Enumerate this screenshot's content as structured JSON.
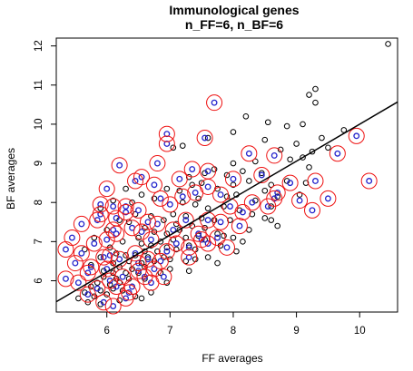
{
  "chart_data": {
    "type": "scatter",
    "title": "Immunological genes",
    "subtitle": "n_FF=6, n_BF=6",
    "xlabel": "FF averages",
    "ylabel": "BF averages",
    "xlim": [
      5.2,
      10.6
    ],
    "ylim": [
      5.2,
      12.2
    ],
    "x_ticks": [
      6,
      7,
      8,
      9,
      10
    ],
    "y_ticks": [
      6,
      7,
      8,
      9,
      10,
      11,
      12
    ],
    "grid": false,
    "regression_line": {
      "intercept": 0.55,
      "slope": 0.945
    },
    "colors": {
      "points": "#000000",
      "highlight_inner": "#2222cc",
      "highlight_ring": "#ee1111",
      "line": "#000000"
    },
    "series": [
      {
        "role": "all-genes",
        "points": [
          [
            10.45,
            12.05
          ],
          [
            9.3,
            10.9
          ],
          [
            9.2,
            10.75
          ],
          [
            9.3,
            10.55
          ],
          [
            8.2,
            10.2
          ],
          [
            8.55,
            10.05
          ],
          [
            9.1,
            10.0
          ],
          [
            8.85,
            9.95
          ],
          [
            9.75,
            9.85
          ],
          [
            9.4,
            9.65
          ],
          [
            8.0,
            9.8
          ],
          [
            7.6,
            9.65
          ],
          [
            7.2,
            9.45
          ],
          [
            7.05,
            9.4
          ],
          [
            8.5,
            9.6
          ],
          [
            9.0,
            9.5
          ],
          [
            8.75,
            9.35
          ],
          [
            8.35,
            9.05
          ],
          [
            8.0,
            9.0
          ],
          [
            7.7,
            8.85
          ],
          [
            9.25,
            9.3
          ],
          [
            9.1,
            9.15
          ],
          [
            9.5,
            9.4
          ],
          [
            8.9,
            9.1
          ],
          [
            7.9,
            8.7
          ],
          [
            8.15,
            8.8
          ],
          [
            8.45,
            8.75
          ],
          [
            8.25,
            8.55
          ],
          [
            8.0,
            8.45
          ],
          [
            8.6,
            8.45
          ],
          [
            8.85,
            8.55
          ],
          [
            9.2,
            8.9
          ],
          [
            7.5,
            8.5
          ],
          [
            7.75,
            8.35
          ],
          [
            7.35,
            8.45
          ],
          [
            7.45,
            8.1
          ],
          [
            7.9,
            8.15
          ],
          [
            8.05,
            8.2
          ],
          [
            8.35,
            8.05
          ],
          [
            8.5,
            8.3
          ],
          [
            8.7,
            8.15
          ],
          [
            9.05,
            8.2
          ],
          [
            9.15,
            8.5
          ],
          [
            8.6,
            7.9
          ],
          [
            8.3,
            7.7
          ],
          [
            8.1,
            7.8
          ],
          [
            7.85,
            7.9
          ],
          [
            7.6,
            7.85
          ],
          [
            7.4,
            7.95
          ],
          [
            7.2,
            8.0
          ],
          [
            7.05,
            7.7
          ],
          [
            7.25,
            7.65
          ],
          [
            7.5,
            7.6
          ],
          [
            7.7,
            7.55
          ],
          [
            7.95,
            7.55
          ],
          [
            7.1,
            7.45
          ],
          [
            7.35,
            7.4
          ],
          [
            7.55,
            7.35
          ],
          [
            7.15,
            7.3
          ],
          [
            6.95,
            7.2
          ],
          [
            7.25,
            7.1
          ],
          [
            7.45,
            7.15
          ],
          [
            7.05,
            7.05
          ],
          [
            6.85,
            7.0
          ],
          [
            7.3,
            6.9
          ],
          [
            6.95,
            6.85
          ],
          [
            6.7,
            6.9
          ],
          [
            6.8,
            6.75
          ],
          [
            7.1,
            6.8
          ],
          [
            6.6,
            6.75
          ],
          [
            6.9,
            6.6
          ],
          [
            6.65,
            6.6
          ],
          [
            6.45,
            6.65
          ],
          [
            6.75,
            6.5
          ],
          [
            6.55,
            6.45
          ],
          [
            6.35,
            6.5
          ],
          [
            6.6,
            6.35
          ],
          [
            6.4,
            6.3
          ],
          [
            6.2,
            6.35
          ],
          [
            6.5,
            6.2
          ],
          [
            6.3,
            6.2
          ],
          [
            6.1,
            6.2
          ],
          [
            6.35,
            6.05
          ],
          [
            6.15,
            6.05
          ],
          [
            5.95,
            6.1
          ],
          [
            6.2,
            5.95
          ],
          [
            6.05,
            5.9
          ],
          [
            5.85,
            5.95
          ],
          [
            6.1,
            5.8
          ],
          [
            5.9,
            5.75
          ],
          [
            5.75,
            5.85
          ],
          [
            6.0,
            5.65
          ],
          [
            5.8,
            5.6
          ],
          [
            5.65,
            5.7
          ],
          [
            5.55,
            5.55
          ],
          [
            5.7,
            5.45
          ],
          [
            5.9,
            5.4
          ],
          [
            6.2,
            5.5
          ],
          [
            6.45,
            5.6
          ],
          [
            6.7,
            5.7
          ],
          [
            7.0,
            6.3
          ],
          [
            7.25,
            6.5
          ],
          [
            7.6,
            6.6
          ],
          [
            7.0,
            6.55
          ],
          [
            6.85,
            6.2
          ],
          [
            6.6,
            6.05
          ],
          [
            6.4,
            5.85
          ],
          [
            6.25,
            5.75
          ],
          [
            7.4,
            6.55
          ],
          [
            7.8,
            6.9
          ],
          [
            8.0,
            7.1
          ],
          [
            8.25,
            7.3
          ],
          [
            8.5,
            7.6
          ],
          [
            8.7,
            7.4
          ],
          [
            8.6,
            7.55
          ],
          [
            7.75,
            7.2
          ],
          [
            7.55,
            7.05
          ],
          [
            7.85,
            7.15
          ],
          [
            8.15,
            7.0
          ],
          [
            7.4,
            6.8
          ],
          [
            6.35,
            7.5
          ],
          [
            6.6,
            7.35
          ],
          [
            6.5,
            7.1
          ],
          [
            6.25,
            7.0
          ],
          [
            6.05,
            6.85
          ],
          [
            5.9,
            6.6
          ],
          [
            6.1,
            6.45
          ],
          [
            6.3,
            6.65
          ],
          [
            6.55,
            6.95
          ],
          [
            6.75,
            7.25
          ],
          [
            6.9,
            7.55
          ],
          [
            6.7,
            7.65
          ],
          [
            6.45,
            7.7
          ],
          [
            6.2,
            7.55
          ],
          [
            6.0,
            7.3
          ],
          [
            5.8,
            7.1
          ],
          [
            5.65,
            6.8
          ],
          [
            5.75,
            6.4
          ],
          [
            5.95,
            6.25
          ],
          [
            6.15,
            6.7
          ],
          [
            7.55,
            8.75
          ],
          [
            7.3,
            8.65
          ],
          [
            7.15,
            8.3
          ],
          [
            6.95,
            8.35
          ],
          [
            6.75,
            8.1
          ],
          [
            6.55,
            8.2
          ],
          [
            6.4,
            8.0
          ],
          [
            6.3,
            8.35
          ],
          [
            6.1,
            8.05
          ],
          [
            5.9,
            7.85
          ],
          [
            7.75,
            6.45
          ],
          [
            8.05,
            6.75
          ],
          [
            7.3,
            6.25
          ],
          [
            6.95,
            5.95
          ],
          [
            6.55,
            5.55
          ]
        ]
      },
      {
        "role": "highlighted-genes",
        "points": [
          [
            7.7,
            10.55
          ],
          [
            6.95,
            9.75
          ],
          [
            6.95,
            9.5
          ],
          [
            7.55,
            9.65
          ],
          [
            8.25,
            9.25
          ],
          [
            8.65,
            9.2
          ],
          [
            9.65,
            9.25
          ],
          [
            9.95,
            9.7
          ],
          [
            10.15,
            8.55
          ],
          [
            9.3,
            8.55
          ],
          [
            9.5,
            8.1
          ],
          [
            9.25,
            7.8
          ],
          [
            9.05,
            8.05
          ],
          [
            8.65,
            8.1
          ],
          [
            8.55,
            7.9
          ],
          [
            8.3,
            8.0
          ],
          [
            8.45,
            8.7
          ],
          [
            8.9,
            8.5
          ],
          [
            8.7,
            8.25
          ],
          [
            8.0,
            8.6
          ],
          [
            8.15,
            7.75
          ],
          [
            8.1,
            7.4
          ],
          [
            7.8,
            7.5
          ],
          [
            7.6,
            7.55
          ],
          [
            7.95,
            7.9
          ],
          [
            7.8,
            8.2
          ],
          [
            7.6,
            8.4
          ],
          [
            7.6,
            8.8
          ],
          [
            7.35,
            8.85
          ],
          [
            7.15,
            8.6
          ],
          [
            7.4,
            8.25
          ],
          [
            7.2,
            8.15
          ],
          [
            7.0,
            7.95
          ],
          [
            6.85,
            8.1
          ],
          [
            6.75,
            8.45
          ],
          [
            6.55,
            8.65
          ],
          [
            6.45,
            8.55
          ],
          [
            6.8,
            9.0
          ],
          [
            6.2,
            8.95
          ],
          [
            6.0,
            8.35
          ],
          [
            5.9,
            7.95
          ],
          [
            6.1,
            7.9
          ],
          [
            6.3,
            7.9
          ],
          [
            6.15,
            7.6
          ],
          [
            5.85,
            7.55
          ],
          [
            5.6,
            7.45
          ],
          [
            5.45,
            7.1
          ],
          [
            5.35,
            6.8
          ],
          [
            5.6,
            6.7
          ],
          [
            5.75,
            6.35
          ],
          [
            5.5,
            6.45
          ],
          [
            5.35,
            6.05
          ],
          [
            5.55,
            5.95
          ],
          [
            5.7,
            5.65
          ],
          [
            5.95,
            5.45
          ],
          [
            6.1,
            5.35
          ],
          [
            6.3,
            5.55
          ],
          [
            6.4,
            5.85
          ],
          [
            6.25,
            6.1
          ],
          [
            6.0,
            6.3
          ],
          [
            6.2,
            6.55
          ],
          [
            6.45,
            6.7
          ],
          [
            6.65,
            6.55
          ],
          [
            6.5,
            6.25
          ],
          [
            6.75,
            6.3
          ],
          [
            6.85,
            6.5
          ],
          [
            6.95,
            6.75
          ],
          [
            7.1,
            6.95
          ],
          [
            7.3,
            6.85
          ],
          [
            7.5,
            7.05
          ],
          [
            7.45,
            7.2
          ],
          [
            6.7,
            7.05
          ],
          [
            6.55,
            7.25
          ],
          [
            6.4,
            7.35
          ],
          [
            6.15,
            7.2
          ],
          [
            6.0,
            7.05
          ],
          [
            5.8,
            6.95
          ],
          [
            6.05,
            6.65
          ],
          [
            6.8,
            7.45
          ],
          [
            7.05,
            7.3
          ],
          [
            6.3,
            7.75
          ],
          [
            6.5,
            7.8
          ],
          [
            6.65,
            7.5
          ],
          [
            5.9,
            7.7
          ],
          [
            6.1,
            7.3
          ],
          [
            7.25,
            7.55
          ],
          [
            7.3,
            6.6
          ],
          [
            7.6,
            6.95
          ],
          [
            7.75,
            7.1
          ],
          [
            7.9,
            6.85
          ],
          [
            6.9,
            6.1
          ],
          [
            6.6,
            6.1
          ],
          [
            6.35,
            5.7
          ],
          [
            6.15,
            5.85
          ],
          [
            5.85,
            5.8
          ],
          [
            6.7,
            5.95
          ],
          [
            6.5,
            6.45
          ],
          [
            6.05,
            6.0
          ],
          [
            5.95,
            6.6
          ],
          [
            5.7,
            6.2
          ]
        ]
      }
    ]
  }
}
